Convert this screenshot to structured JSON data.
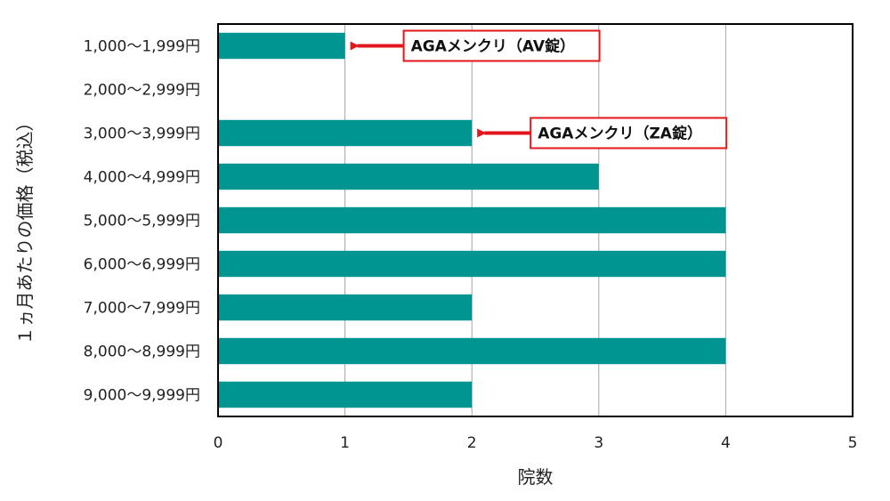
{
  "chart_data": {
    "type": "bar",
    "orientation": "horizontal",
    "categories": [
      "1,000～1,999円",
      "2,000～2,999円",
      "3,000～3,999円",
      "4,000～4,999円",
      "5,000～5,999円",
      "6,000～6,999円",
      "7,000～7,999円",
      "8,000～8,999円",
      "9,000～9,999円"
    ],
    "values": [
      1,
      0,
      2,
      3,
      4,
      4,
      2,
      4,
      2
    ],
    "xlabel": "院数",
    "ylabel": "１ヵ月あたりの価格（税込）",
    "xlim": [
      0,
      5
    ],
    "xticks": [
      "0",
      "1",
      "2",
      "3",
      "4",
      "5"
    ],
    "grid": "vertical",
    "legend": "none",
    "bar_color": "#009591",
    "annotations": [
      {
        "category_index": 0,
        "text": "AGAメンクリ（AV錠）"
      },
      {
        "category_index": 2,
        "text": "AGAメンクリ（ZA錠）"
      }
    ],
    "annotation_color": "#e3161b"
  }
}
